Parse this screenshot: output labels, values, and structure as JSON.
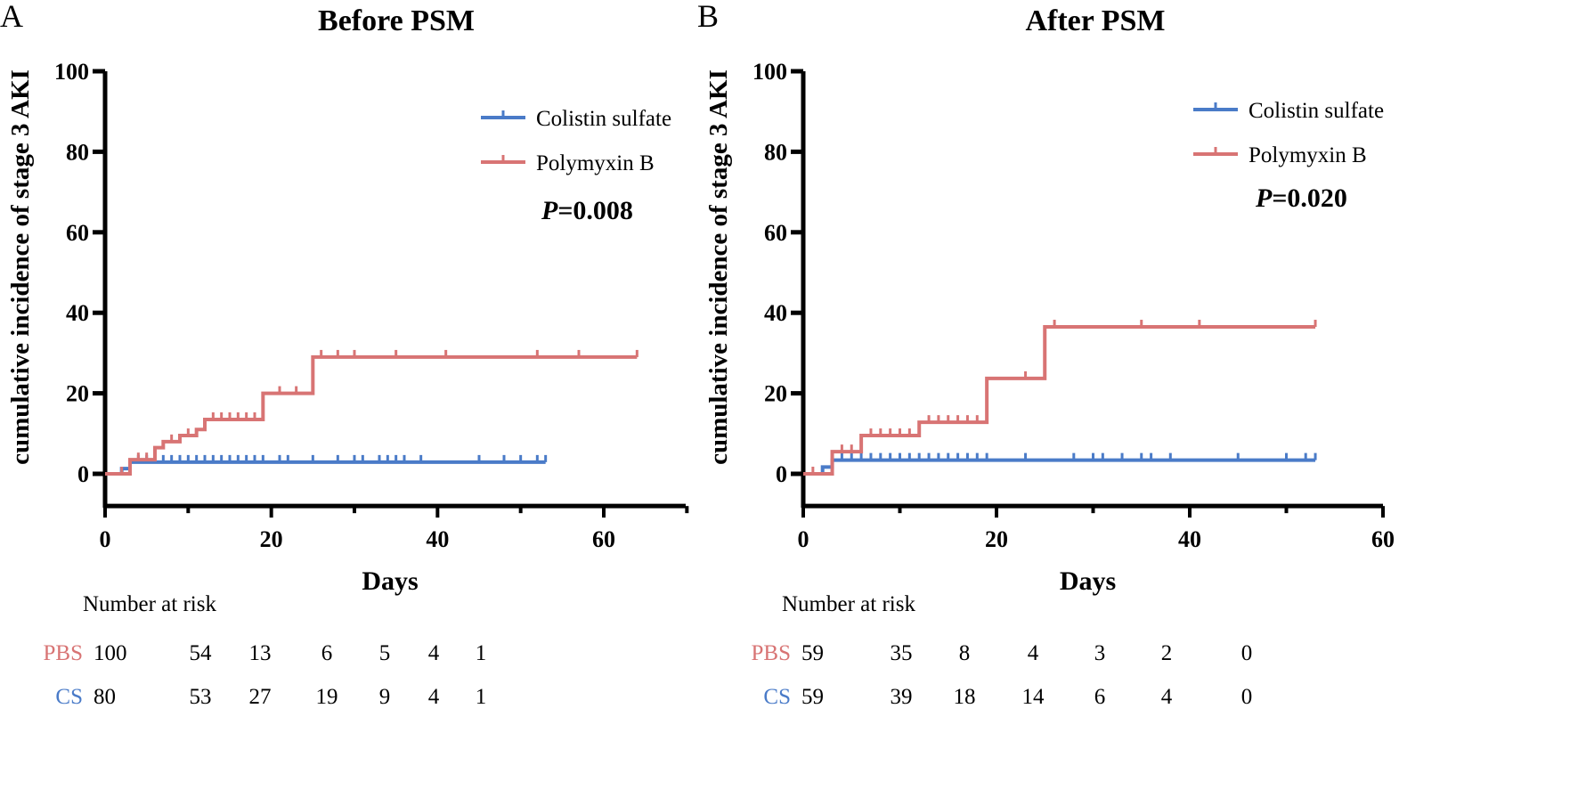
{
  "colors": {
    "cs": "#4a7bc8",
    "pbs": "#d87474",
    "axis": "#000000"
  },
  "chart_data": [
    {
      "type": "line",
      "panel_letter": "A",
      "title": "Before PSM",
      "xlabel": "Days",
      "ylabel": "cumulative incidence of stage 3 AKI",
      "xlim": [
        0,
        70
      ],
      "ylim": [
        -8,
        100
      ],
      "xticks": [
        0,
        20,
        40,
        60
      ],
      "yticks": [
        0,
        20,
        40,
        60,
        80,
        100
      ],
      "grid": false,
      "legend_placement": "top-right",
      "p_value_prefix": "P",
      "p_value": "=0.008",
      "series": [
        {
          "name": "Colistin sulfate",
          "key": "cs",
          "steps": [
            [
              0,
              0
            ],
            [
              2,
              1.3
            ],
            [
              3,
              2.9
            ]
          ],
          "end": 53,
          "censored": [
            4,
            5,
            6,
            7,
            8,
            9,
            10,
            11,
            12,
            13,
            14,
            15,
            16,
            17,
            18,
            19,
            21,
            22,
            25,
            28,
            30,
            31,
            33,
            34,
            35,
            36,
            38,
            45,
            48,
            50,
            52,
            53
          ]
        },
        {
          "name": "Polymyxin B",
          "key": "pbs",
          "steps": [
            [
              0,
              0
            ],
            [
              3,
              3.5
            ],
            [
              6,
              6.5
            ],
            [
              7,
              8
            ],
            [
              9,
              9.5
            ],
            [
              11,
              11
            ],
            [
              12,
              13.5
            ],
            [
              19,
              20
            ],
            [
              25,
              29
            ]
          ],
          "end": 64,
          "censored": [
            2,
            4,
            5,
            8,
            10,
            13,
            14,
            15,
            16,
            17,
            18,
            21,
            23,
            26,
            28,
            30,
            35,
            41,
            52,
            57,
            64
          ]
        }
      ],
      "risk_table": {
        "title": "Number at risk",
        "times": [
          0,
          10,
          20,
          30,
          40,
          50,
          60
        ],
        "rows": [
          {
            "label": "PBS",
            "key": "pbs",
            "values": [
              "100",
              "54",
              "13",
              "6",
              "5",
              "4",
              "1"
            ]
          },
          {
            "label": "CS",
            "key": "cs",
            "values": [
              "80",
              "53",
              "27",
              "19",
              "9",
              "4",
              "1"
            ]
          }
        ]
      }
    },
    {
      "type": "line",
      "panel_letter": "B",
      "title": "After PSM",
      "xlabel": "Days",
      "ylabel": "cumulative incidence of stage 3 AKI",
      "xlim": [
        0,
        60
      ],
      "ylim": [
        -8,
        100
      ],
      "xticks": [
        0,
        20,
        40,
        60
      ],
      "yticks": [
        0,
        20,
        40,
        60,
        80,
        100
      ],
      "grid": false,
      "legend_placement": "top-right",
      "p_value_prefix": "P",
      "p_value": "=0.020",
      "series": [
        {
          "name": "Colistin sulfate",
          "key": "cs",
          "steps": [
            [
              0,
              0
            ],
            [
              2,
              1.7
            ],
            [
              3,
              3.4
            ]
          ],
          "end": 53,
          "censored": [
            4,
            5,
            6,
            7,
            8,
            9,
            10,
            11,
            12,
            13,
            14,
            15,
            16,
            17,
            18,
            19,
            23,
            28,
            30,
            31,
            33,
            35,
            36,
            38,
            45,
            50,
            52,
            53
          ]
        },
        {
          "name": "Polymyxin B",
          "key": "pbs",
          "steps": [
            [
              0,
              0
            ],
            [
              3,
              5.5
            ],
            [
              6,
              9.5
            ],
            [
              12,
              12.8
            ],
            [
              19,
              23.7
            ],
            [
              25,
              36.5
            ]
          ],
          "end": 53,
          "censored": [
            1,
            4,
            5,
            7,
            8,
            9,
            10,
            11,
            13,
            14,
            15,
            16,
            17,
            18,
            23,
            26,
            35,
            41,
            53
          ]
        }
      ],
      "risk_table": {
        "title": "Number at risk",
        "times": [
          0,
          10,
          20,
          30,
          40,
          50,
          60
        ],
        "rows": [
          {
            "label": "PBS",
            "key": "pbs",
            "values": [
              "59",
              "35",
              "8",
              "4",
              "3",
              "2",
              "0"
            ]
          },
          {
            "label": "CS",
            "key": "cs",
            "values": [
              "59",
              "39",
              "18",
              "14",
              "6",
              "4",
              "0"
            ]
          }
        ]
      }
    }
  ]
}
